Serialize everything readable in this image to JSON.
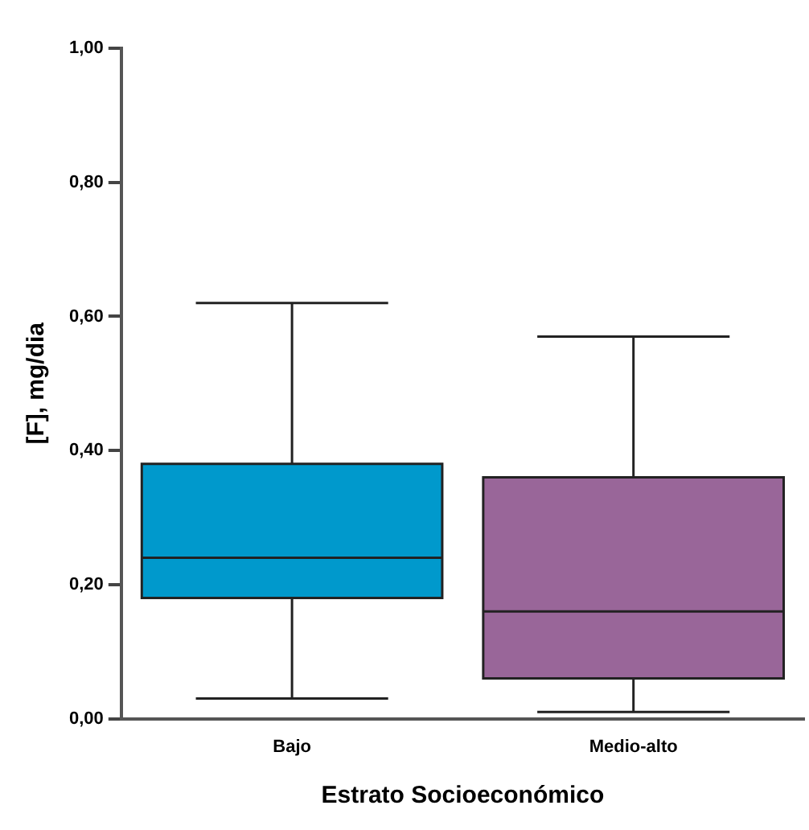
{
  "chart_data": {
    "type": "box",
    "xlabel": "Estrato Socioeconómico",
    "ylabel": "[F], mg/dia",
    "categories": [
      "Bajo",
      "Medio-alto"
    ],
    "colors": [
      "#0099cc",
      "#996699"
    ],
    "boxes": [
      {
        "low": 0.03,
        "q1": 0.18,
        "median": 0.24,
        "q3": 0.38,
        "high": 0.62
      },
      {
        "low": 0.01,
        "q1": 0.06,
        "median": 0.16,
        "q3": 0.36,
        "high": 0.57
      }
    ],
    "ylim": [
      0,
      1
    ],
    "yticks": [
      {
        "value": 0,
        "label": "0,00"
      },
      {
        "value": 0.2,
        "label": "0,20"
      },
      {
        "value": 0.4,
        "label": "0,40"
      },
      {
        "value": 0.6,
        "label": "0,60"
      },
      {
        "value": 0.8,
        "label": "0,80"
      },
      {
        "value": 1,
        "label": "1,00"
      }
    ],
    "grid": false,
    "legend": false
  }
}
